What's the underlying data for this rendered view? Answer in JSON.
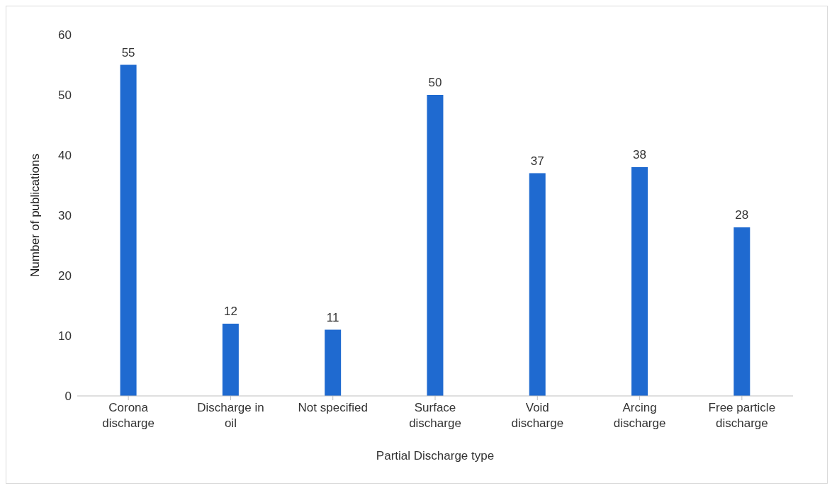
{
  "chart_data": {
    "type": "bar",
    "xlabel": "Partial Discharge type",
    "ylabel": "Number of publications",
    "categories": [
      "Corona discharge",
      "Discharge in oil",
      "Not specified",
      "Surface discharge",
      "Void discharge",
      "Arcing discharge",
      "Free particle discharge"
    ],
    "values": [
      55,
      12,
      11,
      50,
      37,
      38,
      28
    ],
    "color": "#1f6ad0",
    "ylim": [
      0,
      60
    ],
    "yticks": [
      0,
      10,
      20,
      30,
      40,
      50,
      60
    ],
    "grid": false,
    "data_labels": true,
    "legend": false
  }
}
